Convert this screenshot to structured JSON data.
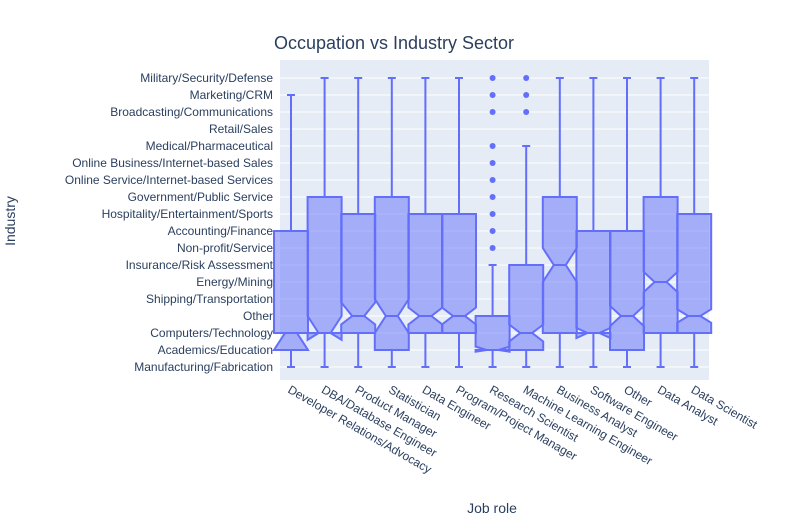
{
  "chart_data": {
    "type": "box",
    "title": "Occupation vs Industry Sector",
    "xlabel": "Job role",
    "ylabel": "Industry",
    "notched": true,
    "color": "#636efa",
    "fill_color": "rgba(99,110,250,0.5)",
    "background": "#e5ecf6",
    "industries": [
      "Manufacturing/Fabrication",
      "Academics/Education",
      "Computers/Technology",
      "Other",
      "Shipping/Transportation",
      "Energy/Mining",
      "Insurance/Risk Assessment",
      "Non-profit/Service",
      "Accounting/Finance",
      "Hospitality/Entertainment/Sports",
      "Government/Public Service",
      "Online Service/Internet-based Services",
      "Online Business/Internet-based Sales",
      "Medical/Pharmaceutical",
      "Retail/Sales",
      "Broadcasting/Communications",
      "Marketing/CRM",
      "Military/Security/Defense"
    ],
    "roles": [
      {
        "name": "Developer Relations/Advocacy",
        "min": 0,
        "q1": 1,
        "median": 2,
        "q3": 8,
        "max": 16,
        "notch_low": 1,
        "notch_high": 2,
        "outliers": []
      },
      {
        "name": "DBA/Database Engineer",
        "min": 0,
        "q1": 2,
        "median": 2,
        "q3": 10,
        "max": 17,
        "notch_low": 1.6,
        "notch_high": 3,
        "outliers": []
      },
      {
        "name": "Product Manager",
        "min": 0,
        "q1": 2,
        "median": 3,
        "q3": 9,
        "max": 17,
        "notch_low": 2.5,
        "notch_high": 3.8,
        "outliers": []
      },
      {
        "name": "Statistician",
        "min": 0,
        "q1": 1,
        "median": 3,
        "q3": 10,
        "max": 17,
        "notch_low": 2,
        "notch_high": 4,
        "outliers": []
      },
      {
        "name": "Data Engineer",
        "min": 0,
        "q1": 2,
        "median": 3,
        "q3": 9,
        "max": 17,
        "notch_low": 2.5,
        "notch_high": 3.5,
        "outliers": []
      },
      {
        "name": "Program/Project Manager",
        "min": 0,
        "q1": 2,
        "median": 3,
        "q3": 9,
        "max": 17,
        "notch_low": 2.5,
        "notch_high": 3.5,
        "outliers": []
      },
      {
        "name": "Research Scientist",
        "min": 0,
        "q1": 1,
        "median": 1,
        "q3": 3,
        "max": 6,
        "notch_low": 0.9,
        "notch_high": 1.2,
        "outliers": [
          7,
          8,
          9,
          10,
          11,
          12,
          13,
          15,
          16,
          17
        ]
      },
      {
        "name": "Machine Learning Engineer",
        "min": 0,
        "q1": 1,
        "median": 2,
        "q3": 6,
        "max": 13,
        "notch_low": 1.5,
        "notch_high": 2.5,
        "outliers": [
          15,
          16,
          17
        ]
      },
      {
        "name": "Business Analyst",
        "min": 0,
        "q1": 2,
        "median": 6,
        "q3": 10,
        "max": 17,
        "notch_low": 5,
        "notch_high": 7,
        "outliers": []
      },
      {
        "name": "Software Engineer",
        "min": 0,
        "q1": 2,
        "median": 2,
        "q3": 8,
        "max": 17,
        "notch_low": 1.7,
        "notch_high": 2.3,
        "outliers": []
      },
      {
        "name": "Other",
        "min": 0,
        "q1": 1,
        "median": 3,
        "q3": 8,
        "max": 17,
        "notch_low": 2.4,
        "notch_high": 3.6,
        "outliers": []
      },
      {
        "name": "Data Analyst",
        "min": 0,
        "q1": 2,
        "median": 5,
        "q3": 10,
        "max": 17,
        "notch_low": 4.4,
        "notch_high": 5.6,
        "outliers": []
      },
      {
        "name": "Data Scientist",
        "min": 0,
        "q1": 2,
        "median": 3,
        "q3": 9,
        "max": 17,
        "notch_low": 2.6,
        "notch_high": 3.4,
        "outliers": []
      }
    ]
  }
}
